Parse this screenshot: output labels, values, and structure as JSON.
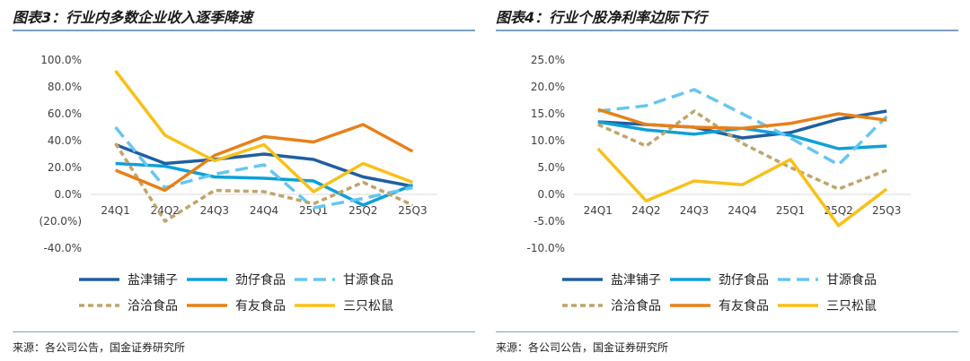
{
  "chart_data": [
    {
      "type": "line",
      "title": "图表3：行业内多数企业收入逐季降速",
      "source": "来源：各公司公告，国金证券研究所",
      "categories": [
        "24Q1",
        "24Q2",
        "24Q3",
        "24Q4",
        "25Q1",
        "25Q2",
        "25Q3"
      ],
      "ylim": [
        -40,
        100
      ],
      "yticks": [
        -40,
        -20,
        0,
        20,
        40,
        60,
        80,
        100
      ],
      "ytick_labels": [
        "-40.0%",
        "(20.0%)",
        "0.0%",
        "20.0%",
        "40.0%",
        "60.0%",
        "80.0%",
        "100.0%"
      ],
      "legend": "bottom",
      "series": [
        {
          "name": "盐津铺子",
          "color": "#1f5fa0",
          "dash": "solid",
          "values": [
            37,
            23,
            26,
            30,
            26,
            13,
            6
          ]
        },
        {
          "name": "劲仔食品",
          "color": "#0ea0d8",
          "dash": "solid",
          "values": [
            23,
            21,
            13,
            12,
            10,
            -8,
            7
          ]
        },
        {
          "name": "甘源食品",
          "color": "#66c6f0",
          "dash": "dash",
          "values": [
            50,
            5,
            15,
            22,
            -10,
            -3,
            5
          ]
        },
        {
          "name": "洽洽食品",
          "color": "#c0a46b",
          "dash": "dot",
          "values": [
            38,
            -20,
            3,
            2,
            -7,
            9,
            -8
          ]
        },
        {
          "name": "有友食品",
          "color": "#e88018",
          "dash": "solid",
          "values": [
            18,
            3,
            29,
            43,
            39,
            52,
            32
          ]
        },
        {
          "name": "三只松鼠",
          "color": "#f8c018",
          "dash": "solid",
          "values": [
            92,
            44,
            25,
            37,
            2,
            23,
            9
          ]
        }
      ]
    },
    {
      "type": "line",
      "title": "图表4：行业个股净利率边际下行",
      "source": "来源：各公司公告，国金证券研究所",
      "categories": [
        "24Q1",
        "24Q2",
        "24Q3",
        "24Q4",
        "25Q1",
        "25Q2",
        "25Q3"
      ],
      "ylim": [
        -10,
        25
      ],
      "yticks": [
        -10,
        -5,
        0,
        5,
        10,
        15,
        20,
        25
      ],
      "ytick_labels": [
        "-10.0%",
        "-5.0%",
        "0.0%",
        "5.0%",
        "10.0%",
        "15.0%",
        "20.0%",
        "25.0%"
      ],
      "legend": "bottom",
      "series": [
        {
          "name": "盐津铺子",
          "color": "#1f5fa0",
          "dash": "solid",
          "values": [
            13.5,
            13,
            12.5,
            10.5,
            11.5,
            14,
            15.5
          ]
        },
        {
          "name": "劲仔食品",
          "color": "#0ea0d8",
          "dash": "solid",
          "values": [
            13.5,
            12,
            11.2,
            12.3,
            11,
            8.5,
            9
          ]
        },
        {
          "name": "甘源食品",
          "color": "#66c6f0",
          "dash": "dash",
          "values": [
            15.5,
            16.5,
            19.5,
            15,
            10.5,
            5.5,
            14.5
          ]
        },
        {
          "name": "洽洽食品",
          "color": "#c0a46b",
          "dash": "dot",
          "values": [
            13,
            9,
            15.5,
            9.5,
            5,
            1,
            4.5
          ]
        },
        {
          "name": "有友食品",
          "color": "#e88018",
          "dash": "solid",
          "values": [
            15.8,
            13,
            12.5,
            12.3,
            13.2,
            15,
            13.8
          ]
        },
        {
          "name": "三只松鼠",
          "color": "#f8c018",
          "dash": "solid",
          "values": [
            8.5,
            -1.2,
            2.5,
            1.8,
            6.5,
            -5.8,
            1
          ]
        }
      ]
    }
  ]
}
